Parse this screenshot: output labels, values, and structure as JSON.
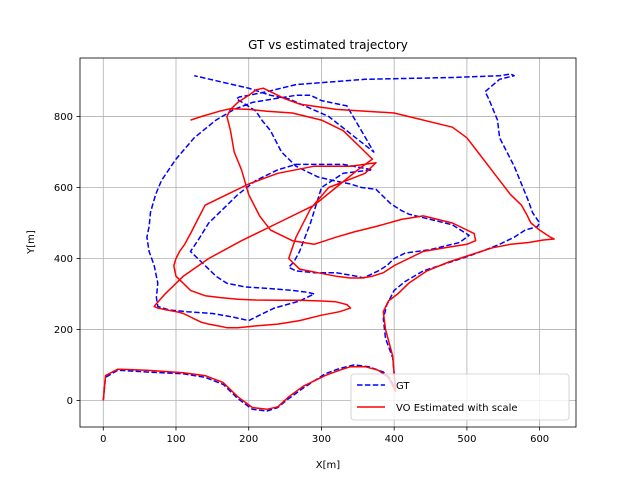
{
  "chart_data": {
    "type": "line",
    "title": "GT vs estimated trajectory",
    "xlabel": "X[m]",
    "ylabel": "Y[m]",
    "xlim": [
      -32,
      650
    ],
    "ylim": [
      -75,
      965
    ],
    "xticks": [
      0,
      100,
      200,
      300,
      400,
      500,
      600
    ],
    "yticks": [
      0,
      200,
      400,
      600,
      800
    ],
    "grid": true,
    "legend_position": "lower-right",
    "series": [
      {
        "name": "GT",
        "color": "#0000ff",
        "dash": "dashed",
        "x": [
          0,
          3,
          20,
          60,
          110,
          140,
          165,
          185,
          205,
          225,
          240,
          255,
          275,
          305,
          325,
          345,
          365,
          385,
          395,
          402,
          398,
          388,
          385,
          390,
          400,
          415,
          440,
          470,
          500,
          520,
          545,
          565,
          580,
          597,
          600,
          590,
          585,
          575,
          565,
          555,
          545,
          542,
          530,
          525,
          545,
          565,
          560,
          545,
          480,
          360,
          265,
          225,
          200,
          187,
          183,
          187,
          195,
          210,
          218,
          230,
          245,
          265,
          295,
          315,
          340,
          355,
          375,
          395,
          410,
          420,
          440,
          460,
          480,
          503,
          490,
          470,
          450,
          415,
          400,
          390,
          378,
          368,
          358,
          348,
          320,
          290,
          265,
          255,
          262,
          270,
          285,
          300,
          330,
          370,
          330,
          300,
          265,
          240,
          210,
          185,
          165,
          145,
          130,
          120,
          130,
          145,
          155,
          170,
          195,
          230,
          260,
          280,
          290,
          270,
          235,
          215,
          200,
          178,
          150,
          115,
          90,
          75,
          73,
          75,
          70,
          63,
          60,
          63,
          65,
          72,
          80,
          100,
          125,
          155,
          180,
          205,
          235,
          265,
          285,
          300,
          335,
          372,
          310,
          255,
          230,
          200,
          125
        ],
        "y": [
          0,
          65,
          85,
          80,
          75,
          65,
          45,
          5,
          -25,
          -30,
          -20,
          5,
          35,
          75,
          90,
          100,
          95,
          80,
          60,
          30,
          120,
          175,
          230,
          270,
          310,
          335,
          365,
          385,
          405,
          420,
          440,
          460,
          480,
          490,
          500,
          530,
          560,
          610,
          660,
          700,
          740,
          790,
          850,
          870,
          905,
          915,
          920,
          915,
          910,
          905,
          890,
          870,
          860,
          855,
          850,
          845,
          835,
          815,
          790,
          760,
          700,
          660,
          630,
          620,
          610,
          600,
          595,
          555,
          535,
          525,
          515,
          505,
          495,
          465,
          445,
          435,
          425,
          415,
          400,
          380,
          365,
          355,
          345,
          350,
          360,
          360,
          365,
          375,
          390,
          420,
          500,
          600,
          640,
          650,
          665,
          665,
          665,
          650,
          620,
          580,
          540,
          500,
          450,
          420,
          400,
          370,
          350,
          330,
          320,
          315,
          310,
          305,
          300,
          280,
          260,
          240,
          225,
          235,
          245,
          250,
          255,
          265,
          290,
          330,
          380,
          420,
          460,
          490,
          530,
          580,
          620,
          680,
          740,
          790,
          820,
          840,
          850,
          860,
          860,
          845,
          830,
          700,
          800,
          850,
          860,
          880,
          915
        ]
      },
      {
        "name": "VO Estimated with scale",
        "color": "#ff0000",
        "dash": "solid",
        "x": [
          0,
          3,
          20,
          60,
          110,
          140,
          165,
          185,
          205,
          225,
          240,
          255,
          275,
          305,
          325,
          340,
          360,
          378,
          392,
          402,
          398,
          388,
          385,
          392,
          405,
          420,
          445,
          475,
          505,
          535,
          560,
          585,
          605,
          620,
          615,
          600,
          588,
          582,
          575,
          560,
          545,
          530,
          515,
          500,
          480,
          400,
          320,
          270,
          250,
          240,
          230,
          220,
          210,
          200,
          185,
          175,
          170,
          175,
          180,
          190,
          200,
          215,
          230,
          260,
          290,
          320,
          345,
          375,
          410,
          440,
          480,
          510,
          512,
          500,
          470,
          440,
          420,
          400,
          385,
          370,
          355,
          340,
          320,
          295,
          270,
          255,
          265,
          285,
          310,
          335,
          360,
          375,
          340,
          290,
          240,
          200,
          170,
          140,
          130,
          120,
          112,
          105,
          100,
          97,
          100,
          110,
          120,
          140,
          160,
          185,
          210,
          240,
          270,
          300,
          320,
          335,
          340,
          325,
          300,
          270,
          240,
          210,
          185,
          170,
          158,
          145,
          135,
          130,
          125,
          120,
          115,
          110,
          105,
          100,
          95,
          90,
          85,
          80,
          75,
          72,
          70,
          72,
          85,
          110,
          145,
          190,
          240,
          290,
          320,
          350,
          370,
          330,
          300,
          260,
          225,
          200,
          175,
          160,
          135,
          120
        ],
        "y": [
          0,
          70,
          88,
          85,
          78,
          70,
          50,
          10,
          -20,
          -25,
          -18,
          10,
          40,
          70,
          85,
          95,
          95,
          85,
          65,
          25,
          125,
          200,
          250,
          280,
          300,
          330,
          365,
          390,
          410,
          430,
          440,
          445,
          452,
          455,
          460,
          480,
          500,
          525,
          550,
          580,
          620,
          660,
          700,
          740,
          770,
          810,
          820,
          835,
          850,
          860,
          870,
          880,
          875,
          860,
          840,
          820,
          800,
          760,
          700,
          650,
          580,
          520,
          480,
          450,
          440,
          460,
          475,
          490,
          510,
          520,
          500,
          470,
          450,
          440,
          430,
          420,
          400,
          380,
          360,
          350,
          345,
          345,
          350,
          360,
          370,
          400,
          460,
          540,
          600,
          620,
          640,
          670,
          660,
          660,
          640,
          610,
          580,
          550,
          510,
          470,
          440,
          420,
          400,
          380,
          350,
          330,
          310,
          295,
          290,
          285,
          283,
          282,
          282,
          280,
          278,
          270,
          260,
          250,
          240,
          225,
          215,
          210,
          205,
          205,
          210,
          215,
          220,
          225,
          230,
          235,
          240,
          245,
          248,
          250,
          252,
          254,
          256,
          258,
          260,
          263,
          265,
          270,
          300,
          350,
          400,
          450,
          500,
          550,
          600,
          650,
          680,
          760,
          790,
          810,
          815,
          820,
          822,
          815,
          800,
          790
        ]
      }
    ]
  }
}
